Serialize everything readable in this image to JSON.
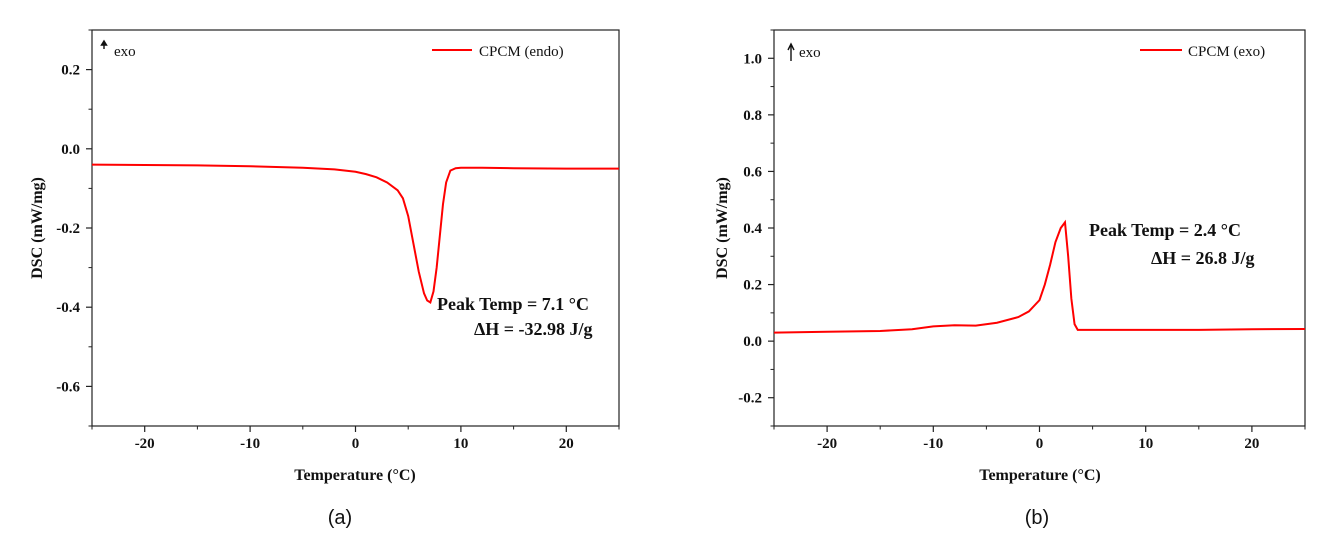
{
  "chart_data": [
    {
      "type": "line",
      "panel_label": "(a)",
      "xlabel": "Temperature (°C)",
      "ylabel": "DSC (mW/mg)",
      "xlim": [
        -25,
        25
      ],
      "ylim": [
        -0.7,
        0.3
      ],
      "xticks": [
        -20,
        -10,
        0,
        10,
        20
      ],
      "yticks": [
        0.2,
        0.0,
        -0.2,
        -0.4,
        -0.6
      ],
      "ytick_labels": [
        "0.2",
        "0.0",
        "-0.2",
        "-0.4",
        "-0.6"
      ],
      "exo_label": "exo",
      "legend": "top-right",
      "series": [
        {
          "name": "CPCM (endo)",
          "color": "#ff0000",
          "x": [
            -25,
            -20,
            -15,
            -10,
            -5,
            -2,
            0,
            1,
            2,
            3,
            4,
            4.5,
            5,
            5.5,
            6,
            6.5,
            6.8,
            7.1,
            7.4,
            7.7,
            8,
            8.3,
            8.6,
            9,
            9.5,
            10,
            12,
            15,
            20,
            25
          ],
          "y": [
            -0.04,
            -0.041,
            -0.042,
            -0.044,
            -0.048,
            -0.052,
            -0.058,
            -0.064,
            -0.072,
            -0.085,
            -0.105,
            -0.125,
            -0.17,
            -0.24,
            -0.31,
            -0.365,
            -0.383,
            -0.388,
            -0.36,
            -0.3,
            -0.22,
            -0.14,
            -0.085,
            -0.055,
            -0.049,
            -0.048,
            -0.048,
            -0.049,
            -0.05,
            -0.05
          ]
        }
      ],
      "annotations": [
        "Peak Temp = 7.1 °C",
        "ΔH =  -32.98 J/g"
      ]
    },
    {
      "type": "line",
      "panel_label": "(b)",
      "xlabel": "Temperature (°C)",
      "ylabel": "DSC (mW/mg)",
      "xlim": [
        -25,
        25
      ],
      "ylim": [
        -0.3,
        1.1
      ],
      "xticks": [
        -20,
        -10,
        0,
        10,
        20
      ],
      "yticks": [
        1.0,
        0.8,
        0.6,
        0.4,
        0.2,
        0.0,
        -0.2
      ],
      "ytick_labels": [
        "1.0",
        "0.8",
        "0.6",
        "0.4",
        "0.2",
        "0.0",
        "-0.2"
      ],
      "exo_label": "exo",
      "legend": "top-right",
      "series": [
        {
          "name": "CPCM (exo)",
          "color": "#ff0000",
          "x": [
            -25,
            -20,
            -15,
            -12,
            -10,
            -8,
            -6,
            -4,
            -2,
            -1,
            0,
            0.5,
            1,
            1.5,
            2,
            2.4,
            2.7,
            3,
            3.3,
            3.6,
            5,
            10,
            15,
            20,
            25
          ],
          "y": [
            0.03,
            0.033,
            0.036,
            0.042,
            0.052,
            0.056,
            0.055,
            0.065,
            0.085,
            0.105,
            0.145,
            0.2,
            0.27,
            0.35,
            0.4,
            0.42,
            0.3,
            0.15,
            0.06,
            0.04,
            0.04,
            0.04,
            0.04,
            0.042,
            0.043
          ]
        }
      ],
      "annotations": [
        "Peak Temp = 2.4 °C",
        "ΔH =  26.8 J/g"
      ]
    }
  ]
}
